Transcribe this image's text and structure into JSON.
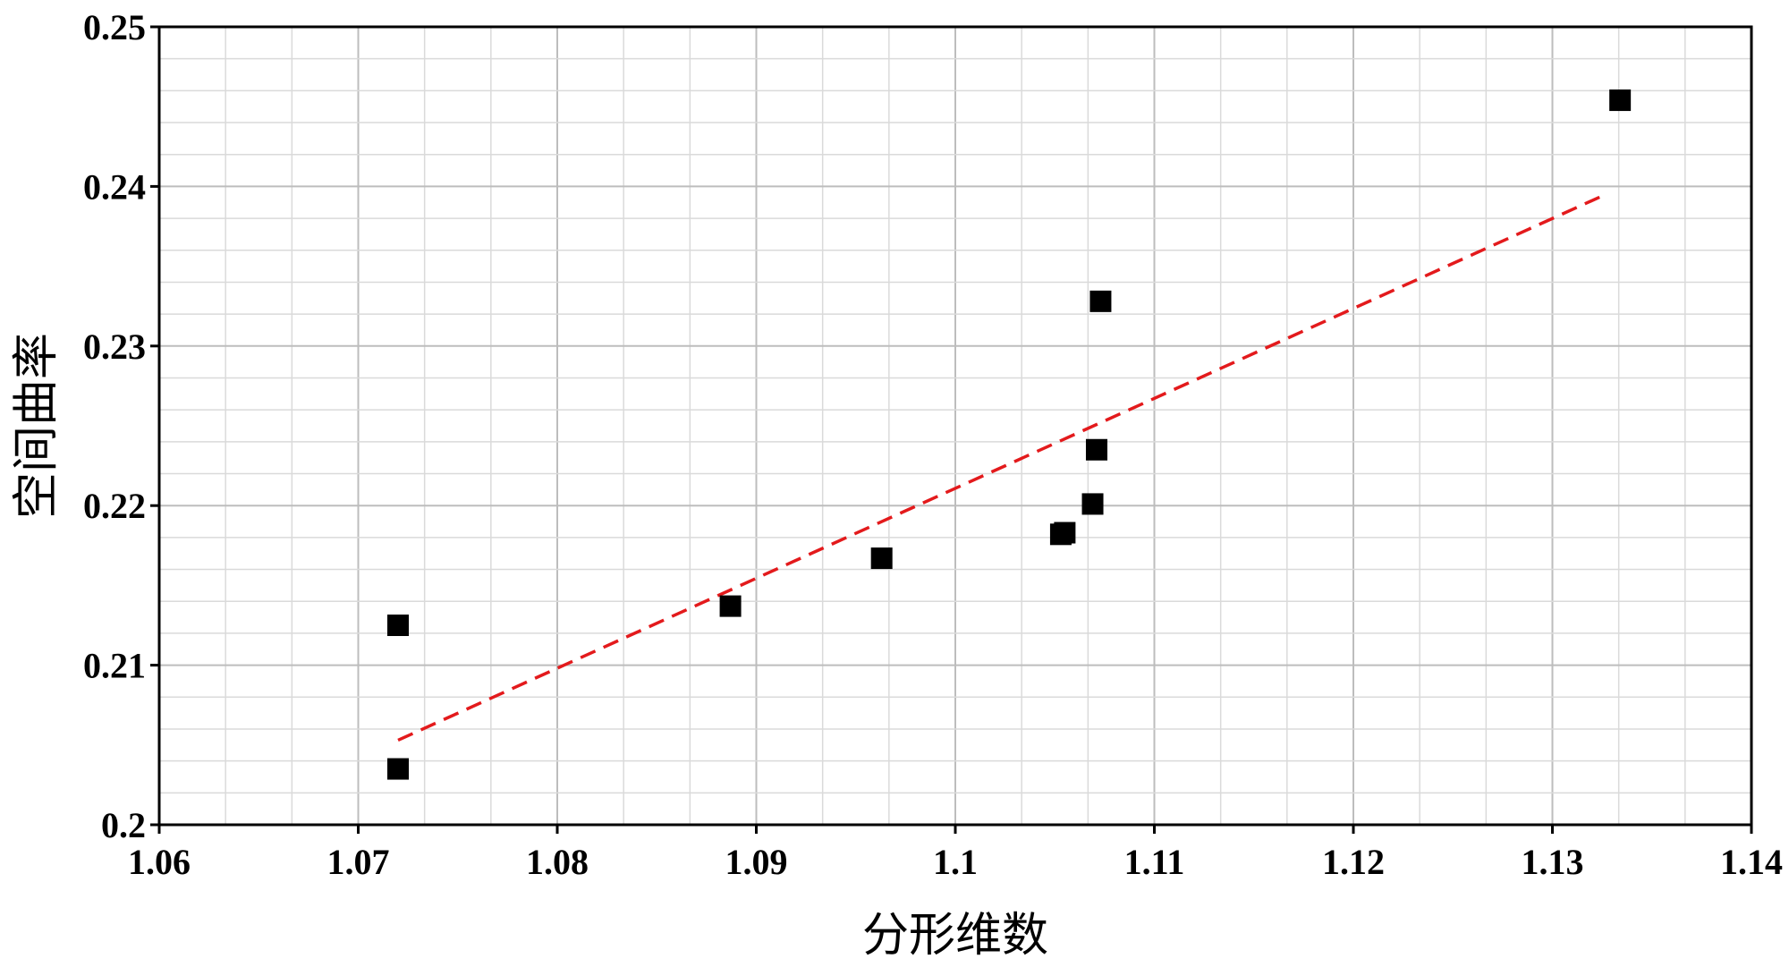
{
  "chart_data": {
    "type": "scatter",
    "title": "",
    "xlabel": "分形维数",
    "ylabel": "空间曲率",
    "xlim": [
      1.06,
      1.14
    ],
    "ylim": [
      0.2,
      0.25
    ],
    "x_ticks": [
      1.06,
      1.07,
      1.08,
      1.09,
      1.1,
      1.11,
      1.12,
      1.13,
      1.14
    ],
    "x_tick_labels": [
      "1.06",
      "1.07",
      "1.08",
      "1.09",
      "1.1",
      "1.11",
      "1.12",
      "1.13",
      "1.14"
    ],
    "y_ticks": [
      0.2,
      0.21,
      0.22,
      0.23,
      0.24,
      0.25
    ],
    "y_tick_labels": [
      "0.2",
      "0.21",
      "0.22",
      "0.23",
      "0.24",
      "0.25"
    ],
    "grid": true,
    "minor_grid": true,
    "series": [
      {
        "marker": "square",
        "color": "#000000",
        "points": [
          {
            "x": 1.072,
            "y": 0.2035
          },
          {
            "x": 1.072,
            "y": 0.2125
          },
          {
            "x": 1.0887,
            "y": 0.2137
          },
          {
            "x": 1.0963,
            "y": 0.2167
          },
          {
            "x": 1.1053,
            "y": 0.2182
          },
          {
            "x": 1.1055,
            "y": 0.2183
          },
          {
            "x": 1.1069,
            "y": 0.2201
          },
          {
            "x": 1.1071,
            "y": 0.2235
          },
          {
            "x": 1.1073,
            "y": 0.2328
          },
          {
            "x": 1.1334,
            "y": 0.2454
          }
        ]
      }
    ],
    "trendline": {
      "style": "dashed",
      "color": "#e31a1c",
      "x": [
        1.072,
        1.1325
      ],
      "y": [
        0.2053,
        0.2394
      ]
    }
  }
}
